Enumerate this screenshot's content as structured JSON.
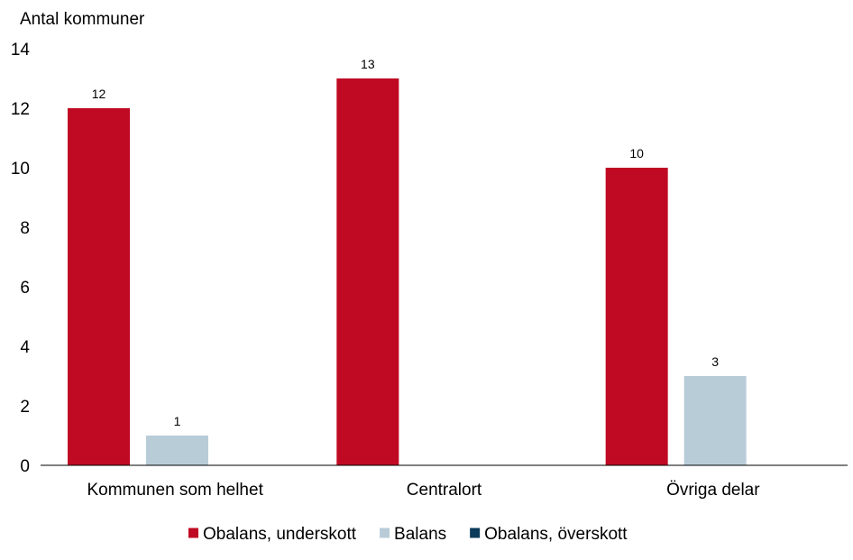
{
  "chart_data": {
    "type": "bar",
    "title": "",
    "ylabel": "Antal kommuner",
    "xlabel": "",
    "ylim": [
      0,
      14
    ],
    "yticks": [
      0,
      2,
      4,
      6,
      8,
      10,
      12,
      14
    ],
    "grid": false,
    "legend_position": "bottom",
    "categories": [
      "Kommunen som helhet",
      "Centralort",
      "Övriga delar"
    ],
    "series": [
      {
        "name": "Obalans, underskott",
        "color": "#C00A23",
        "values": [
          12,
          13,
          10
        ]
      },
      {
        "name": "Balans",
        "color": "#B8CCD8",
        "values": [
          1,
          null,
          3
        ]
      },
      {
        "name": "Obalans, överskott",
        "color": "#0A3A5A",
        "values": [
          null,
          null,
          null
        ]
      }
    ]
  }
}
